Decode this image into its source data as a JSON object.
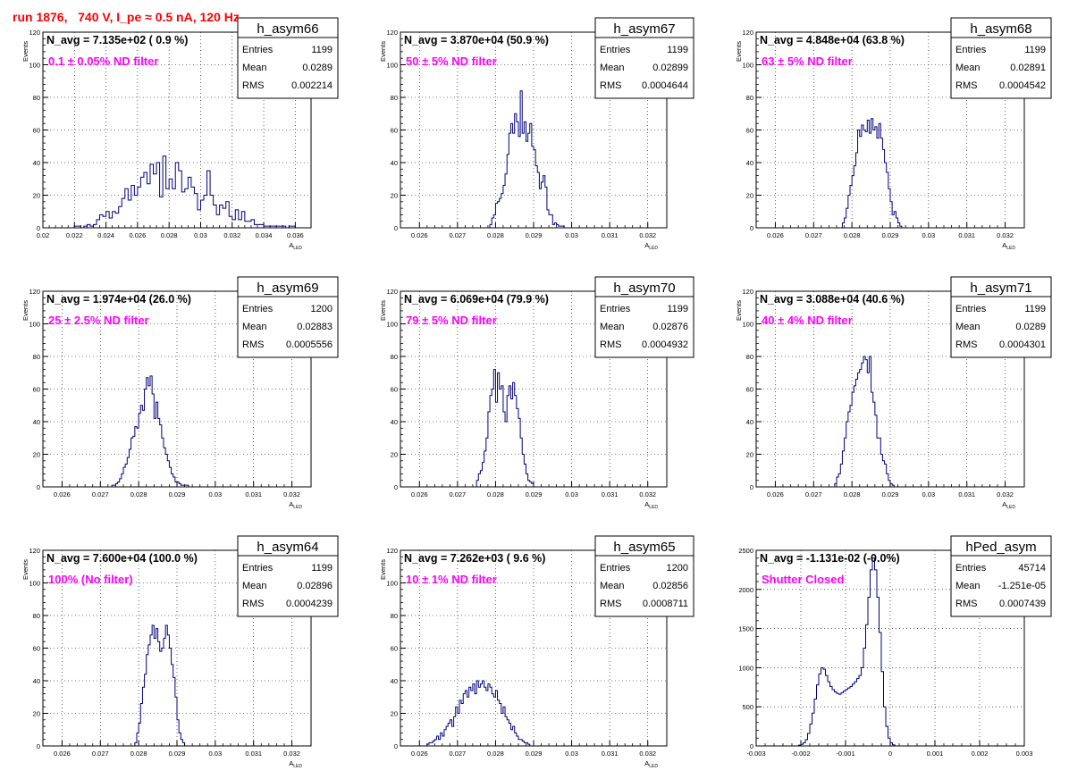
{
  "title": "run 1876,   740 V, I_pe ≈ 0.5 nA, 120 Hz",
  "colors": {
    "histogram": "#000080",
    "title": "#ff0000",
    "annotation": "#ff00ff",
    "frame": "#000000",
    "grid": "#000000"
  },
  "stats_labels": {
    "entries": "Entries",
    "mean": "Mean",
    "rms": "RMS"
  },
  "chart_data": [
    {
      "type": "histogram",
      "name": "h_asym66",
      "navg": "N_avg = 7.135e+02 ( 0.9 %)",
      "annotation": "0.1 ± 0.05% ND filter",
      "stats": {
        "entries": "1199",
        "mean": "0.0289",
        "rms": "0.002214"
      },
      "ylabel": "Events",
      "xlabel": "A",
      "xlabel_sub": "LED",
      "xlim": [
        0.02,
        0.037
      ],
      "ylim": [
        0,
        120
      ],
      "xticks": [
        0.02,
        0.022,
        0.024,
        0.026,
        0.028,
        0.03,
        0.032,
        0.034,
        0.036
      ],
      "xtick_labels": [
        "0.02",
        "0.022",
        "0.024",
        "0.026",
        "0.028",
        "0.03",
        "0.032",
        "0.034",
        "0.036"
      ],
      "yticks": [
        0,
        20,
        40,
        60,
        80,
        100,
        120
      ],
      "ytick_labels": [
        "0",
        "20",
        "40",
        "60",
        "80",
        "100",
        "120"
      ],
      "grid": true,
      "bins": {
        "start": 0.022,
        "width": 0.0002,
        "counts": [
          1,
          1,
          0,
          1,
          2,
          1,
          2,
          5,
          8,
          7,
          10,
          6,
          10,
          9,
          13,
          18,
          24,
          17,
          26,
          20,
          25,
          31,
          34,
          27,
          39,
          33,
          40,
          19,
          44,
          24,
          30,
          24,
          40,
          35,
          22,
          24,
          31,
          25,
          21,
          11,
          17,
          20,
          35,
          20,
          14,
          8,
          14,
          12,
          16,
          7,
          5,
          11,
          5,
          10,
          4,
          4,
          5,
          2,
          2,
          2,
          1,
          1,
          1,
          1,
          1,
          1,
          1,
          0,
          1,
          1
        ]
      }
    },
    {
      "type": "histogram",
      "name": "h_asym67",
      "navg": "N_avg = 3.870e+04 (50.9 %)",
      "annotation": "50 ± 5% ND filter",
      "stats": {
        "entries": "1199",
        "mean": "0.02899",
        "rms": "0.0004644"
      },
      "ylabel": "Events",
      "xlabel": "A",
      "xlabel_sub": "LED",
      "xlim": [
        0.0255,
        0.0325
      ],
      "ylim": [
        0,
        120
      ],
      "xticks": [
        0.026,
        0.027,
        0.028,
        0.029,
        0.03,
        0.031,
        0.032
      ],
      "xtick_labels": [
        "0.026",
        "0.027",
        "0.028",
        "0.029",
        "0.03",
        "0.031",
        "0.032"
      ],
      "yticks": [
        0,
        20,
        40,
        60,
        80,
        100,
        120
      ],
      "ytick_labels": [
        "0",
        "20",
        "40",
        "60",
        "80",
        "100",
        "120"
      ],
      "grid": true,
      "bins": {
        "start": 0.02785,
        "width": 5e-05,
        "counts": [
          2,
          6,
          8,
          15,
          16,
          18,
          21,
          26,
          33,
          45,
          58,
          64,
          58,
          70,
          65,
          56,
          84,
          58,
          65,
          53,
          58,
          64,
          50,
          48,
          38,
          34,
          24,
          28,
          32,
          25,
          11,
          8,
          8,
          2,
          3,
          2,
          1,
          1,
          1
        ]
      }
    },
    {
      "type": "histogram",
      "name": "h_asym68",
      "navg": "N_avg = 4.848e+04 (63.8 %)",
      "annotation": "63 ± 5% ND filter",
      "stats": {
        "entries": "1199",
        "mean": "0.02891",
        "rms": "0.0004542"
      },
      "ylabel": "Events",
      "xlabel": "A",
      "xlabel_sub": "LED",
      "xlim": [
        0.0255,
        0.0325
      ],
      "ylim": [
        0,
        120
      ],
      "xticks": [
        0.026,
        0.027,
        0.028,
        0.029,
        0.03,
        0.031,
        0.032
      ],
      "xtick_labels": [
        "0.026",
        "0.027",
        "0.028",
        "0.029",
        "0.03",
        "0.031",
        "0.032"
      ],
      "yticks": [
        0,
        20,
        40,
        60,
        80,
        100,
        120
      ],
      "ytick_labels": [
        "0",
        "20",
        "40",
        "60",
        "80",
        "100",
        "120"
      ],
      "grid": true,
      "bins": {
        "start": 0.02775,
        "width": 5e-05,
        "counts": [
          3,
          6,
          12,
          20,
          26,
          32,
          38,
          46,
          60,
          56,
          63,
          60,
          59,
          66,
          58,
          67,
          60,
          62,
          55,
          64,
          55,
          48,
          40,
          34,
          24,
          16,
          8,
          10,
          6,
          3,
          1
        ]
      }
    },
    {
      "type": "histogram",
      "name": "h_asym69",
      "navg": "N_avg = 1.974e+04 (26.0 %)",
      "annotation": "25 ± 2.5% ND filter",
      "stats": {
        "entries": "1200",
        "mean": "0.02883",
        "rms": "0.0005556"
      },
      "ylabel": "Events",
      "xlabel": "A",
      "xlabel_sub": "LED",
      "xlim": [
        0.0255,
        0.0325
      ],
      "ylim": [
        0,
        120
      ],
      "xticks": [
        0.026,
        0.027,
        0.028,
        0.029,
        0.03,
        0.031,
        0.032
      ],
      "xtick_labels": [
        "0.026",
        "0.027",
        "0.028",
        "0.029",
        "0.03",
        "0.031",
        "0.032"
      ],
      "yticks": [
        0,
        20,
        40,
        60,
        80,
        100,
        120
      ],
      "ytick_labels": [
        "0",
        "20",
        "40",
        "60",
        "80",
        "100",
        "120"
      ],
      "grid": true,
      "bins": {
        "start": 0.0273,
        "width": 5e-05,
        "counts": [
          1,
          1,
          2,
          3,
          5,
          8,
          12,
          14,
          18,
          23,
          30,
          31,
          37,
          36,
          45,
          50,
          47,
          60,
          67,
          62,
          68,
          57,
          42,
          52,
          42,
          38,
          30,
          24,
          20,
          16,
          12,
          8,
          6,
          3,
          3,
          2,
          1,
          1,
          1,
          1
        ]
      }
    },
    {
      "type": "histogram",
      "name": "h_asym70",
      "navg": "N_avg = 6.069e+04 (79.9 %)",
      "annotation": "79 ± 5% ND filter",
      "stats": {
        "entries": "1199",
        "mean": "0.02876",
        "rms": "0.0004932"
      },
      "ylabel": "Events",
      "xlabel": "A",
      "xlabel_sub": "LED",
      "xlim": [
        0.0255,
        0.0325
      ],
      "ylim": [
        0,
        120
      ],
      "xticks": [
        0.026,
        0.027,
        0.028,
        0.029,
        0.03,
        0.031,
        0.032
      ],
      "xtick_labels": [
        "0.026",
        "0.027",
        "0.028",
        "0.029",
        "0.03",
        "0.031",
        "0.032"
      ],
      "yticks": [
        0,
        20,
        40,
        60,
        80,
        100,
        120
      ],
      "ytick_labels": [
        "0",
        "20",
        "40",
        "60",
        "80",
        "100",
        "120"
      ],
      "grid": true,
      "bins": {
        "start": 0.0275,
        "width": 5e-05,
        "counts": [
          4,
          8,
          10,
          15,
          22,
          30,
          46,
          56,
          60,
          72,
          52,
          70,
          60,
          62,
          46,
          40,
          56,
          62,
          54,
          64,
          56,
          48,
          42,
          30,
          20,
          14,
          8,
          4,
          3,
          2
        ]
      }
    },
    {
      "type": "histogram",
      "name": "h_asym71",
      "navg": "N_avg = 3.088e+04 (40.6 %)",
      "annotation": "40 ± 4% ND filter",
      "stats": {
        "entries": "1199",
        "mean": "0.0289",
        "rms": "0.0004301"
      },
      "ylabel": "Events",
      "xlabel": "A",
      "xlabel_sub": "LED",
      "xlim": [
        0.0255,
        0.0325
      ],
      "ylim": [
        0,
        120
      ],
      "xticks": [
        0.026,
        0.027,
        0.028,
        0.029,
        0.03,
        0.031,
        0.032
      ],
      "xtick_labels": [
        "0.026",
        "0.027",
        "0.028",
        "0.029",
        "0.03",
        "0.031",
        "0.032"
      ],
      "yticks": [
        0,
        20,
        40,
        60,
        80,
        100,
        120
      ],
      "ytick_labels": [
        "0",
        "20",
        "40",
        "60",
        "80",
        "100",
        "120"
      ],
      "grid": true,
      "bins": {
        "start": 0.02755,
        "width": 5e-05,
        "counts": [
          2,
          6,
          8,
          14,
          22,
          30,
          40,
          46,
          50,
          58,
          62,
          66,
          70,
          72,
          76,
          80,
          78,
          70,
          80,
          58,
          52,
          44,
          30,
          30,
          20,
          16,
          14,
          8,
          4,
          2,
          1
        ]
      }
    },
    {
      "type": "histogram",
      "name": "h_asym64",
      "navg": "N_avg = 7.600e+04 (100.0 %)",
      "annotation": "100% (No filter)",
      "stats": {
        "entries": "1199",
        "mean": "0.02896",
        "rms": "0.0004239"
      },
      "ylabel": "Events",
      "xlabel": "A",
      "xlabel_sub": "LED",
      "xlim": [
        0.0255,
        0.0325
      ],
      "ylim": [
        0,
        120
      ],
      "xticks": [
        0.026,
        0.027,
        0.028,
        0.029,
        0.03,
        0.031,
        0.032
      ],
      "xtick_labels": [
        "0.026",
        "0.027",
        "0.028",
        "0.029",
        "0.03",
        "0.031",
        "0.032"
      ],
      "yticks": [
        0,
        20,
        40,
        60,
        80,
        100,
        120
      ],
      "ytick_labels": [
        "0",
        "20",
        "40",
        "60",
        "80",
        "100",
        "120"
      ],
      "grid": true,
      "bins": {
        "start": 0.0279,
        "width": 5e-05,
        "counts": [
          2,
          8,
          14,
          26,
          36,
          44,
          56,
          62,
          68,
          74,
          66,
          72,
          64,
          58,
          60,
          66,
          74,
          68,
          60,
          50,
          42,
          30,
          16,
          8,
          4,
          2
        ]
      }
    },
    {
      "type": "histogram",
      "name": "h_asym65",
      "navg": "N_avg = 7.262e+03 ( 9.6 %)",
      "annotation": "10 ± 1% ND filter",
      "stats": {
        "entries": "1200",
        "mean": "0.02856",
        "rms": "0.0008711"
      },
      "ylabel": "Events",
      "xlabel": "A",
      "xlabel_sub": "LED",
      "xlim": [
        0.0255,
        0.0325
      ],
      "ylim": [
        0,
        120
      ],
      "xticks": [
        0.026,
        0.027,
        0.028,
        0.029,
        0.03,
        0.031,
        0.032
      ],
      "xtick_labels": [
        "0.026",
        "0.027",
        "0.028",
        "0.029",
        "0.03",
        "0.031",
        "0.032"
      ],
      "yticks": [
        0,
        20,
        40,
        60,
        80,
        100,
        120
      ],
      "ytick_labels": [
        "0",
        "20",
        "40",
        "60",
        "80",
        "100",
        "120"
      ],
      "grid": true,
      "bins": {
        "start": 0.0262,
        "width": 5e-05,
        "counts": [
          1,
          2,
          2,
          3,
          4,
          6,
          4,
          8,
          6,
          10,
          12,
          14,
          16,
          12,
          18,
          24,
          20,
          28,
          26,
          32,
          34,
          30,
          36,
          34,
          38,
          32,
          40,
          36,
          38,
          40,
          36,
          34,
          38,
          36,
          32,
          30,
          34,
          28,
          26,
          20,
          24,
          18,
          16,
          14,
          10,
          12,
          8,
          6,
          4,
          4,
          3,
          2,
          2,
          1
        ]
      }
    },
    {
      "type": "histogram",
      "name": "hPed_asym",
      "navg": "N_avg = -1.131e-02 (-0.0%)",
      "annotation": "Shutter Closed",
      "stats": {
        "entries": "45714",
        "mean": "-1.251e-05",
        "rms": "0.0007439"
      },
      "ylabel": "",
      "xlabel": "",
      "xlabel_sub": "",
      "xlim": [
        -0.003,
        0.003
      ],
      "ylim": [
        0,
        2500
      ],
      "xticks": [
        -0.003,
        -0.002,
        -0.001,
        0,
        0.001,
        0.002,
        0.003
      ],
      "xtick_labels": [
        "-0.003",
        "-0.002",
        "-0.001",
        "0",
        "0.001",
        "0.002",
        "0.003"
      ],
      "yticks": [
        0,
        500,
        1000,
        1500,
        2000,
        2500
      ],
      "ytick_labels": [
        "0",
        "500",
        "1000",
        "1500",
        "2000",
        "2500"
      ],
      "grid": true,
      "bins": {
        "start": -0.00205,
        "width": 5e-05,
        "counts": [
          10,
          20,
          40,
          80,
          160,
          280,
          420,
          600,
          780,
          920,
          1000,
          980,
          900,
          820,
          760,
          720,
          690,
          670,
          660,
          680,
          700,
          720,
          740,
          760,
          790,
          820,
          860,
          900,
          1000,
          1250,
          1550,
          1900,
          2250,
          2400,
          2250,
          1900,
          1450,
          950,
          500,
          250,
          100,
          40,
          15
        ]
      }
    }
  ]
}
